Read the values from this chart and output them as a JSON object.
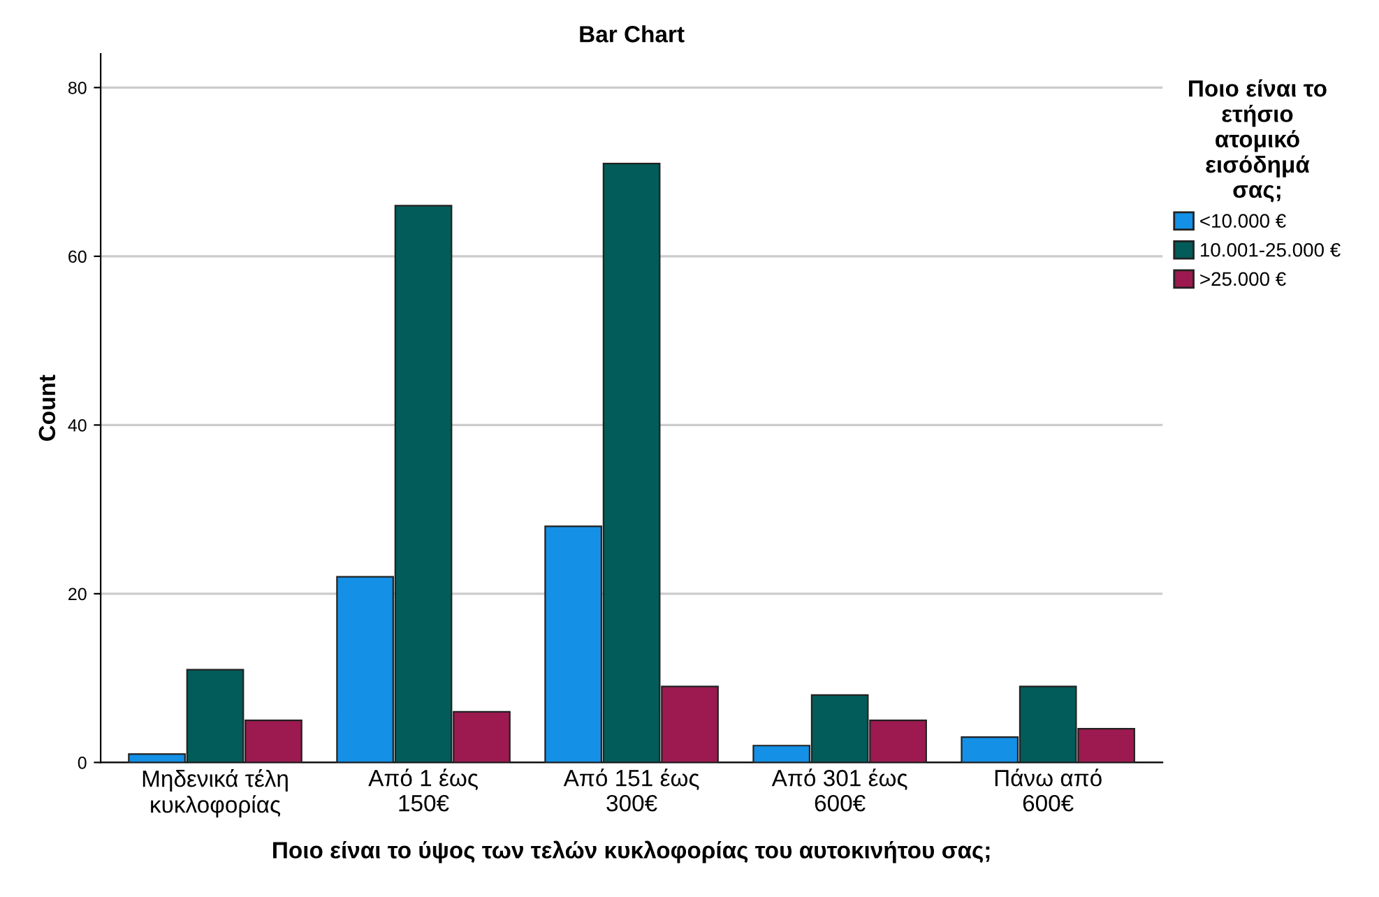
{
  "chart_data": {
    "type": "bar",
    "title": "Bar Chart",
    "xlabel": "Ποιο είναι το ύψος των τελών κυκλοφορίας του αυτοκινήτου σας;",
    "ylabel": "Count",
    "legend_title": "Ποιο είναι το\nετήσιο\nατομικό\nεισόδημά\nσας;",
    "categories": [
      "Μηδενικά τέλη\nκυκλοφορίας",
      "Από 1 έως\n150€",
      "Από 151 έως\n300€",
      "Από 301 έως\n600€",
      "Πάνω από\n600€"
    ],
    "series": [
      {
        "name": "<10.000 €",
        "color": "#1491e6",
        "values": [
          1,
          22,
          28,
          2,
          3
        ]
      },
      {
        "name": "10.001-25.000 €",
        "color": "#015c5a",
        "values": [
          11,
          66,
          71,
          8,
          9
        ]
      },
      {
        "name": ">25.000 €",
        "color": "#9c1a50",
        "values": [
          5,
          6,
          9,
          5,
          4
        ]
      }
    ],
    "ylim": [
      0,
      84
    ],
    "yticks": [
      0,
      20,
      40,
      60,
      80
    ],
    "grid": "y",
    "legend": "top right"
  }
}
